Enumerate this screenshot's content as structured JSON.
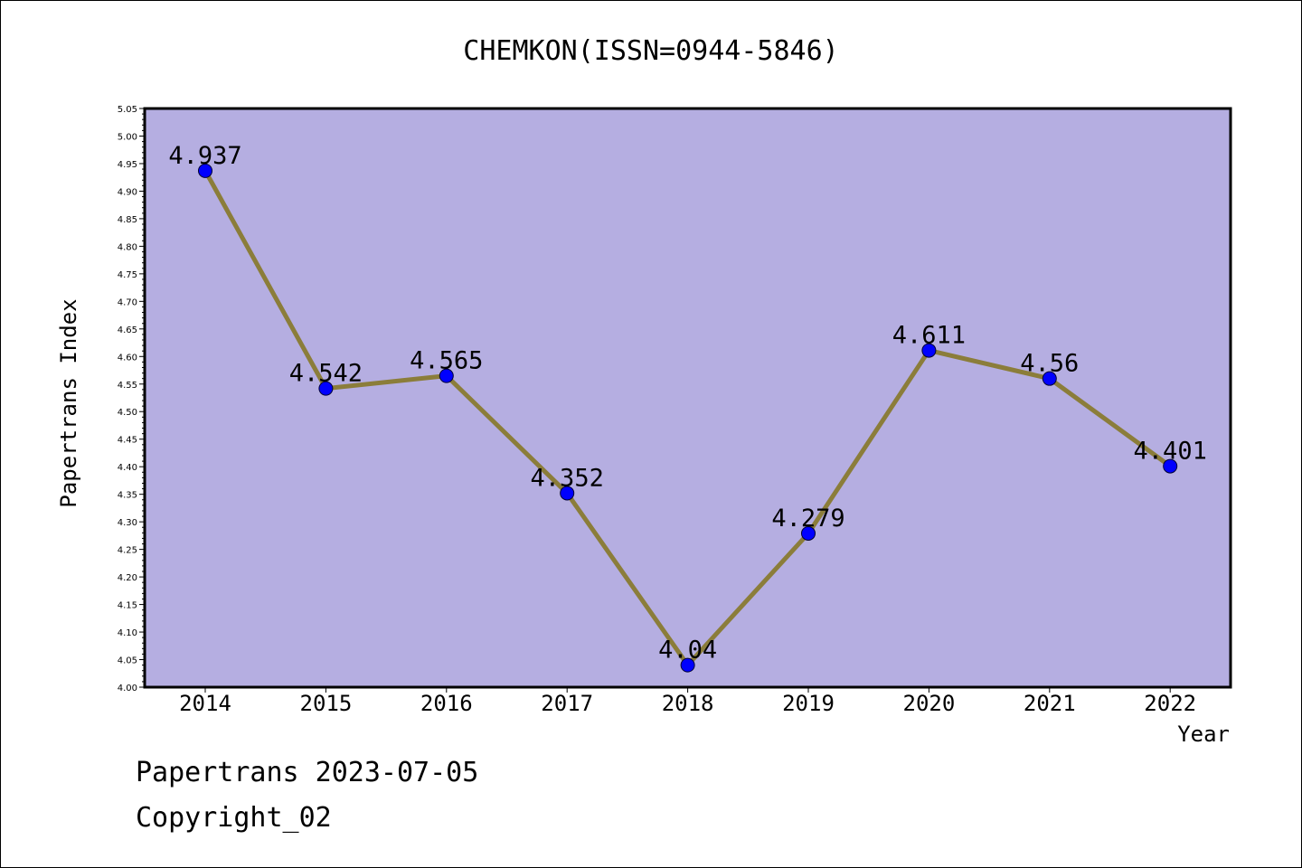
{
  "chart_data": {
    "type": "line",
    "title": "CHEMKON(ISSN=0944-5846)",
    "xlabel": "Year",
    "ylabel": "Papertrans Index",
    "categories": [
      "2014",
      "2015",
      "2016",
      "2017",
      "2018",
      "2019",
      "2020",
      "2021",
      "2022"
    ],
    "series": [
      {
        "values": [
          4.937,
          4.542,
          4.565,
          4.352,
          4.04,
          4.279,
          4.611,
          4.56,
          4.401
        ],
        "data_labels": [
          "4.937",
          "4.542",
          "4.565",
          "4.352",
          "4.04",
          "4.279",
          "4.611",
          "4.56",
          "4.401"
        ],
        "line_color": "#8b7d3a",
        "marker_color": "#0000ff"
      }
    ],
    "ylim": [
      4.0,
      5.05
    ],
    "y_ticks": [
      "4.00",
      "4.05",
      "4.10",
      "4.15",
      "4.20",
      "4.25",
      "4.30",
      "4.35",
      "4.40",
      "4.45",
      "4.50",
      "4.55",
      "4.60",
      "4.65",
      "4.70",
      "4.75",
      "4.80",
      "4.85",
      "4.90",
      "4.95",
      "5.00",
      "5.05"
    ],
    "grid": false,
    "legend": "none",
    "plot_background": "#b5aee1"
  },
  "footer": {
    "line1": "Papertrans 2023-07-05",
    "line2": "Copyright_02"
  }
}
